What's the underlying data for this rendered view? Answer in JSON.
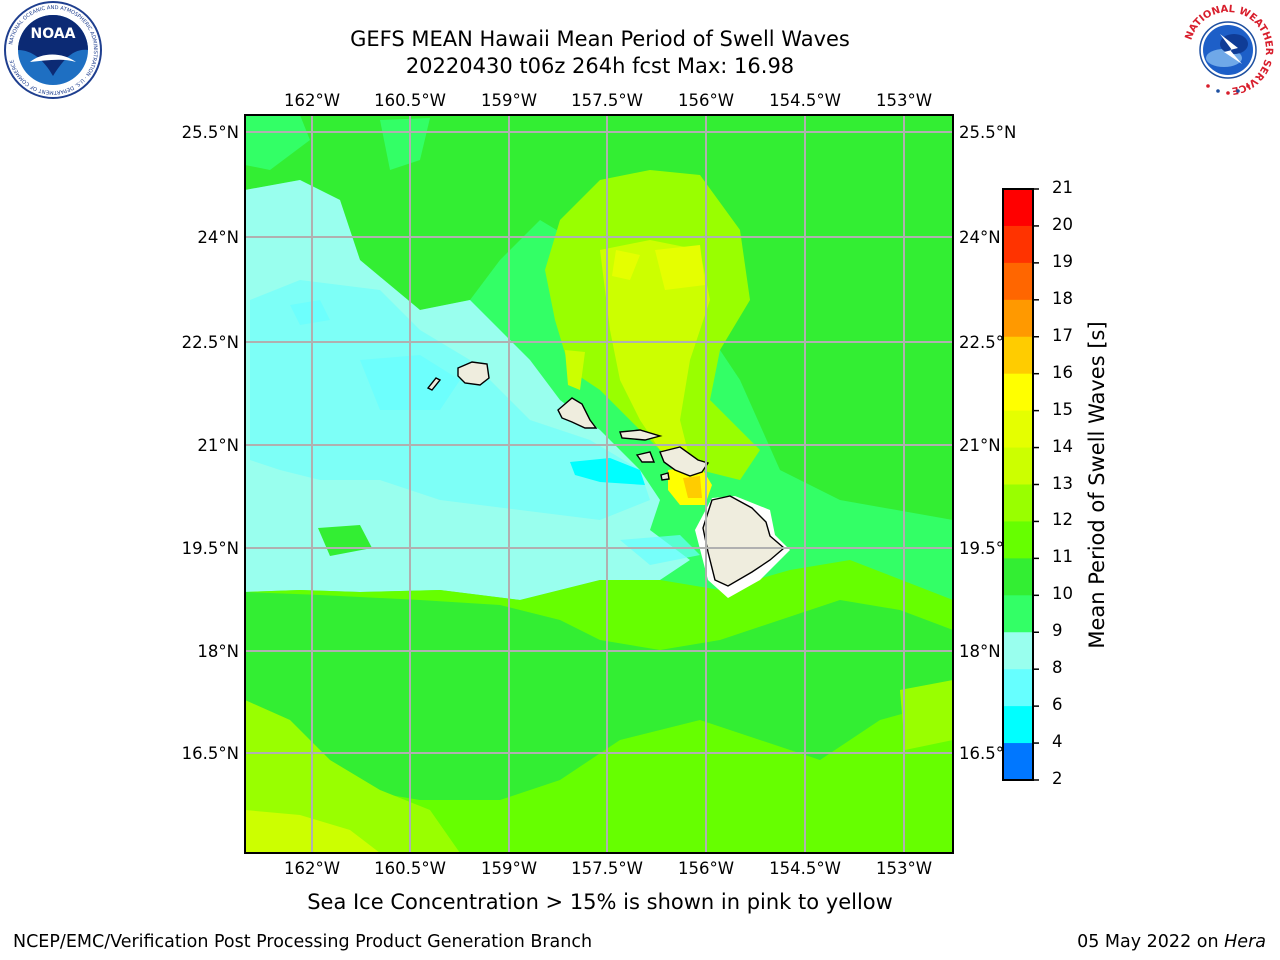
{
  "title_line1": "GEFS MEAN Hawaii Mean Period of Swell Waves",
  "title_line2": "20220430 t06z 264h fcst   Max: 16.98",
  "caption": "Sea Ice Concentration > 15% is shown in pink to yellow",
  "footer_left": "NCEP/EMC/Verification Post Processing Product Generation Branch",
  "footer_date": "05 May 2022 on ",
  "footer_host": "Hera",
  "lon_labels": [
    "162°W",
    "160.5°W",
    "159°W",
    "157.5°W",
    "156°W",
    "154.5°W",
    "153°W"
  ],
  "lat_labels": [
    "25.5°N",
    "24°N",
    "22.5°N",
    "21°N",
    "19.5°N",
    "18°N",
    "16.5°N"
  ],
  "colorbar": {
    "title": "Mean Period of Swell Waves [s]",
    "labels": [
      "21",
      "20",
      "19",
      "18",
      "17",
      "16",
      "15",
      "14",
      "13",
      "12",
      "11",
      "10",
      "9",
      "8",
      "6",
      "4",
      "2"
    ],
    "colors": [
      "#ff0000",
      "#ff3300",
      "#ff6600",
      "#ff9900",
      "#ffcc00",
      "#ffff00",
      "#e5ff00",
      "#ccff00",
      "#99ff00",
      "#66ff00",
      "#33ee33",
      "#33ff66",
      "#99ffee",
      "#66ffff",
      "#00ffff",
      "#0077ff",
      "#0000ff"
    ]
  },
  "logos": {
    "noaa_text": "NOAA",
    "noaa_ring": "NATIONAL OCEANIC AND ATMOSPHERIC ADMINISTRATION · U.S. DEPARTMENT OF COMMERCE",
    "nws_ring": "NATIONAL WEATHER SERVICE"
  }
}
